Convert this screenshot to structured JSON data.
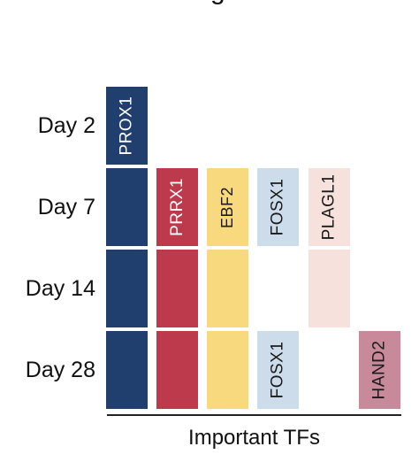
{
  "title_fragment": "g",
  "colors": {
    "PROX1": "#213f6e",
    "PRRX1": "#bd3a4d",
    "EBF2": "#f8d97d",
    "FOSX1": "#ccdcea",
    "PLAGL1": "#f6e1dc",
    "HAND2": "#c8899a"
  },
  "rows": [
    {
      "label": "Day 2",
      "cells": [
        {
          "col": 0,
          "tf": "PROX1",
          "text": "PROX1"
        }
      ]
    },
    {
      "label": "Day 7",
      "cells": [
        {
          "col": 0,
          "tf": "PROX1",
          "text": ""
        },
        {
          "col": 1,
          "tf": "PRRX1",
          "text": "PRRX1"
        },
        {
          "col": 2,
          "tf": "EBF2",
          "text": "EBF2"
        },
        {
          "col": 3,
          "tf": "FOSX1",
          "text": "FOSX1"
        },
        {
          "col": 4,
          "tf": "PLAGL1",
          "text": "PLAGL1"
        }
      ]
    },
    {
      "label": "Day 14",
      "cells": [
        {
          "col": 0,
          "tf": "PROX1",
          "text": ""
        },
        {
          "col": 1,
          "tf": "PRRX1",
          "text": ""
        },
        {
          "col": 2,
          "tf": "EBF2",
          "text": ""
        },
        {
          "col": 4,
          "tf": "PLAGL1",
          "text": ""
        }
      ]
    },
    {
      "label": "Day 28",
      "cells": [
        {
          "col": 0,
          "tf": "PROX1",
          "text": ""
        },
        {
          "col": 1,
          "tf": "PRRX1",
          "text": ""
        },
        {
          "col": 2,
          "tf": "EBF2",
          "text": ""
        },
        {
          "col": 3,
          "tf": "FOSX1",
          "text": "FOSX1"
        },
        {
          "col": 5,
          "tf": "HAND2",
          "text": "HAND2"
        }
      ]
    }
  ],
  "x_axis_label": "Important TFs"
}
